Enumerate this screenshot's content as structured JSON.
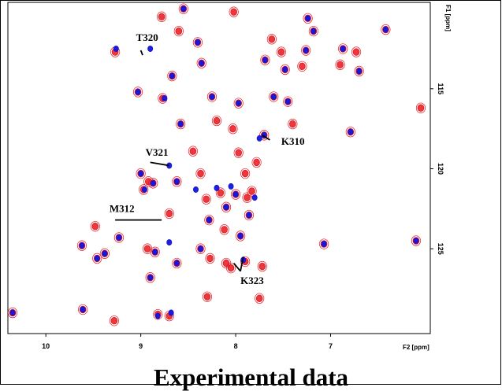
{
  "chart_data": {
    "type": "scatter",
    "title": "",
    "caption": "Experimental data",
    "xlabel": "F2 [ppm]",
    "ylabel": "F1 [ppm]",
    "x_reversed": true,
    "y_reversed": true,
    "xlim": [
      10.4,
      5.95
    ],
    "ylim": [
      109.6,
      130.3
    ],
    "xticks": [
      10,
      9,
      8,
      7
    ],
    "yticks": [
      115,
      120,
      125
    ],
    "series": [
      {
        "color": "#e8141c",
        "peaks": [
          [
            10.35,
            129.0
          ],
          [
            9.62,
            124.8
          ],
          [
            9.61,
            128.8
          ],
          [
            9.48,
            123.6
          ],
          [
            9.46,
            125.6
          ],
          [
            9.38,
            125.3
          ],
          [
            9.28,
            129.5
          ],
          [
            9.27,
            112.7
          ],
          [
            9.23,
            124.3
          ],
          [
            9.03,
            115.2
          ],
          [
            9.0,
            120.3
          ],
          [
            8.97,
            121.3
          ],
          [
            8.93,
            125.0
          ],
          [
            8.92,
            120.8
          ],
          [
            8.9,
            126.8
          ],
          [
            8.87,
            120.9
          ],
          [
            8.85,
            125.2
          ],
          [
            8.82,
            129.1
          ],
          [
            8.78,
            110.5
          ],
          [
            8.77,
            115.6
          ],
          [
            8.7,
            129.2
          ],
          [
            8.7,
            122.8
          ],
          [
            8.67,
            114.2
          ],
          [
            8.62,
            120.8
          ],
          [
            8.62,
            125.9
          ],
          [
            8.6,
            111.4
          ],
          [
            8.58,
            117.2
          ],
          [
            8.55,
            110.0
          ],
          [
            8.45,
            118.9
          ],
          [
            8.4,
            112.1
          ],
          [
            8.37,
            120.3
          ],
          [
            8.37,
            125.0
          ],
          [
            8.36,
            113.4
          ],
          [
            8.31,
            121.9
          ],
          [
            8.3,
            128.0
          ],
          [
            8.28,
            123.2
          ],
          [
            8.27,
            125.6
          ],
          [
            8.25,
            115.5
          ],
          [
            8.2,
            117.0
          ],
          [
            8.16,
            108.4
          ],
          [
            8.16,
            121.5
          ],
          [
            8.12,
            123.8
          ],
          [
            8.1,
            125.9
          ],
          [
            8.1,
            122.4
          ],
          [
            8.05,
            126.2
          ],
          [
            8.03,
            117.5
          ],
          [
            8.02,
            110.2
          ],
          [
            8.0,
            121.6
          ],
          [
            7.97,
            115.9
          ],
          [
            7.97,
            119.0
          ],
          [
            7.95,
            124.2
          ],
          [
            7.9,
            120.3
          ],
          [
            7.9,
            125.8
          ],
          [
            7.88,
            121.8
          ],
          [
            7.86,
            122.9
          ],
          [
            7.83,
            121.4
          ],
          [
            7.78,
            119.6
          ],
          [
            7.75,
            128.1
          ],
          [
            7.72,
            126.1
          ],
          [
            7.7,
            117.9
          ],
          [
            7.69,
            113.2
          ],
          [
            7.62,
            111.9
          ],
          [
            7.6,
            115.5
          ],
          [
            7.52,
            112.7
          ],
          [
            7.48,
            113.8
          ],
          [
            7.45,
            115.8
          ],
          [
            7.4,
            117.2
          ],
          [
            7.3,
            113.6
          ],
          [
            7.26,
            112.6
          ],
          [
            7.24,
            110.6
          ],
          [
            7.18,
            111.4
          ],
          [
            7.07,
            124.7
          ],
          [
            6.9,
            113.5
          ],
          [
            6.87,
            112.5
          ],
          [
            6.79,
            117.7
          ],
          [
            6.73,
            112.7
          ],
          [
            6.7,
            113.9
          ],
          [
            6.42,
            111.3
          ],
          [
            6.1,
            124.5
          ],
          [
            6.05,
            116.2
          ]
        ]
      },
      {
        "color": "#1414d8",
        "peaks": [
          [
            10.35,
            129.0
          ],
          [
            9.62,
            124.8
          ],
          [
            9.61,
            128.8
          ],
          [
            9.46,
            125.6
          ],
          [
            9.38,
            125.3
          ],
          [
            9.26,
            112.5
          ],
          [
            9.23,
            124.3
          ],
          [
            9.03,
            115.2
          ],
          [
            9.0,
            120.3
          ],
          [
            8.96,
            121.3
          ],
          [
            8.9,
            112.5
          ],
          [
            8.9,
            126.8
          ],
          [
            8.87,
            120.9
          ],
          [
            8.85,
            125.2
          ],
          [
            8.82,
            129.2
          ],
          [
            8.75,
            115.6
          ],
          [
            8.7,
            119.8
          ],
          [
            8.7,
            124.6
          ],
          [
            8.68,
            129.0
          ],
          [
            8.67,
            114.2
          ],
          [
            8.62,
            120.8
          ],
          [
            8.62,
            125.9
          ],
          [
            8.58,
            117.2
          ],
          [
            8.55,
            110.0
          ],
          [
            8.42,
            121.3
          ],
          [
            8.4,
            112.1
          ],
          [
            8.37,
            125.0
          ],
          [
            8.36,
            113.4
          ],
          [
            8.28,
            123.2
          ],
          [
            8.25,
            115.5
          ],
          [
            8.2,
            121.2
          ],
          [
            8.16,
            108.4
          ],
          [
            8.1,
            122.4
          ],
          [
            8.05,
            121.1
          ],
          [
            8.0,
            121.6
          ],
          [
            7.97,
            115.9
          ],
          [
            7.95,
            124.2
          ],
          [
            7.92,
            125.7
          ],
          [
            7.86,
            122.9
          ],
          [
            7.8,
            121.8
          ],
          [
            7.75,
            118.1
          ],
          [
            7.7,
            117.9
          ],
          [
            7.69,
            113.2
          ],
          [
            7.6,
            115.5
          ],
          [
            7.48,
            113.8
          ],
          [
            7.45,
            115.8
          ],
          [
            7.26,
            112.6
          ],
          [
            7.24,
            110.6
          ],
          [
            7.18,
            111.4
          ],
          [
            7.07,
            124.7
          ],
          [
            6.87,
            112.5
          ],
          [
            6.79,
            117.7
          ],
          [
            6.7,
            113.9
          ],
          [
            6.42,
            111.3
          ],
          [
            6.1,
            124.5
          ]
        ]
      }
    ],
    "annotations": [
      {
        "text": "T320",
        "x": 9.05,
        "y": 112.0
      },
      {
        "text": "V321",
        "x": 8.95,
        "y": 119.2
      },
      {
        "text": "K310",
        "x": 7.52,
        "y": 118.5
      },
      {
        "text": "M312",
        "x": 9.33,
        "y": 122.7
      },
      {
        "text": "K323",
        "x": 7.95,
        "y": 127.2
      }
    ]
  }
}
